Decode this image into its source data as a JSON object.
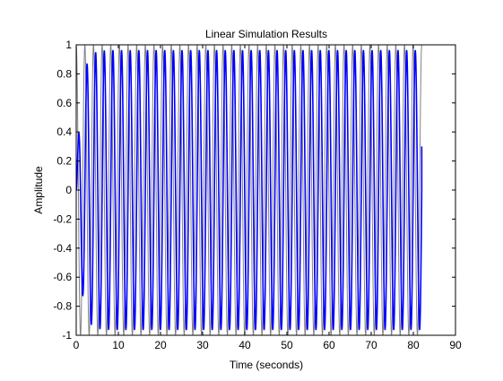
{
  "chart_data": {
    "type": "line",
    "title": "Linear Simulation Results",
    "xlabel": "Time (seconds)",
    "ylabel": "Amplitude",
    "xlim": [
      0,
      90
    ],
    "ylim": [
      -1,
      1
    ],
    "x_ticks": [
      "0",
      "10",
      "20",
      "30",
      "40",
      "50",
      "60",
      "70",
      "80",
      "90"
    ],
    "y_ticks": [
      "-1",
      "-0.8",
      "-0.6",
      "-0.4",
      "-0.2",
      "0",
      "0.2",
      "0.4",
      "0.6",
      "0.8",
      "1"
    ],
    "grid": false,
    "colors": {
      "output": "#0000ff",
      "input": "#808080",
      "axes": "#000000",
      "background": "#ffffff"
    },
    "series": [
      {
        "role": "input",
        "color": "#808080",
        "time_range": [
          0,
          82
        ],
        "amplitude": 1,
        "period_s": 2.05,
        "cycles": 40
      },
      {
        "role": "output",
        "color": "#0000ff",
        "time_range": [
          0,
          82
        ],
        "period_s": 2.05,
        "cycles": 40,
        "transient_peaks": [
          {
            "time": 0.5,
            "value": 0.28
          },
          {
            "time": 1.5,
            "value": -0.53
          },
          {
            "time": 2.5,
            "value": 0.72
          },
          {
            "time": 3.5,
            "value": -0.85
          },
          {
            "time": 4.5,
            "value": 0.91
          },
          {
            "time": 5.5,
            "value": -0.94
          }
        ],
        "steady_state_amplitude": 0.96,
        "final_value": 0.3
      }
    ]
  }
}
